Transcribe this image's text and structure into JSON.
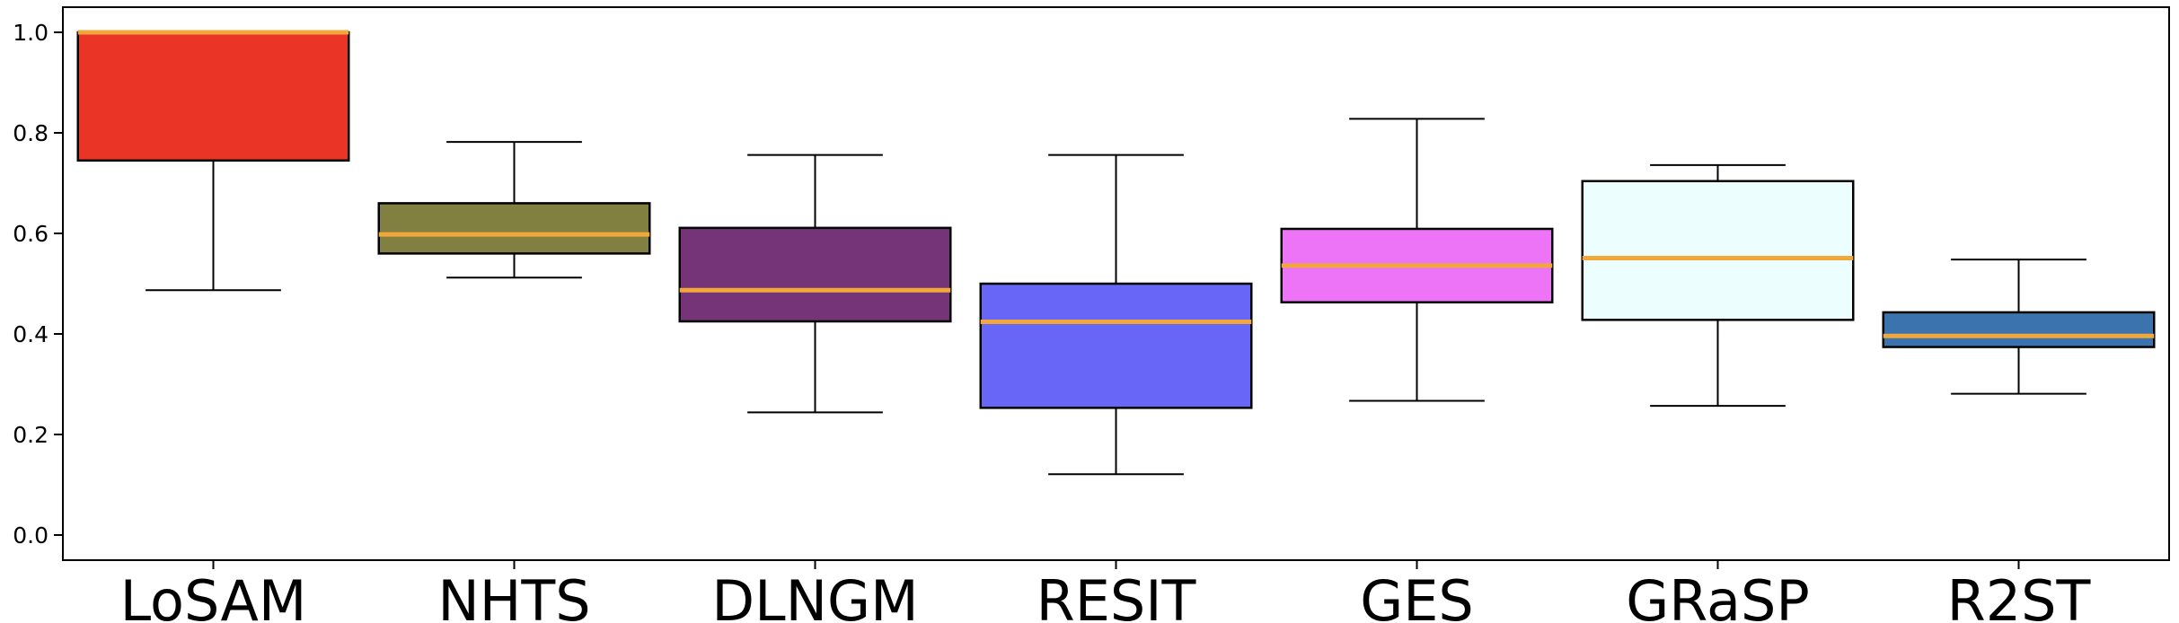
{
  "chart_data": {
    "type": "box",
    "categories": [
      "LoSAM",
      "NHTS",
      "DLNGM",
      "RESIT",
      "GES",
      "GRaSP",
      "R2ST"
    ],
    "boxes": [
      {
        "label": "LoSAM",
        "whisker_low": 0.487,
        "q1": 0.745,
        "median": 1.0,
        "q3": 1.0,
        "whisker_high": 1.0,
        "color": "#ea3425"
      },
      {
        "label": "NHTS",
        "whisker_low": 0.512,
        "q1": 0.56,
        "median": 0.598,
        "q3": 0.66,
        "whisker_high": 0.782,
        "color": "#818041"
      },
      {
        "label": "DLNGM",
        "whisker_low": 0.244,
        "q1": 0.425,
        "median": 0.487,
        "q3": 0.611,
        "whisker_high": 0.756,
        "color": "#763478"
      },
      {
        "label": "RESIT",
        "whisker_low": 0.121,
        "q1": 0.253,
        "median": 0.424,
        "q3": 0.5,
        "whisker_high": 0.756,
        "color": "#6866f7"
      },
      {
        "label": "GES",
        "whisker_low": 0.267,
        "q1": 0.463,
        "median": 0.536,
        "q3": 0.609,
        "whisker_high": 0.828,
        "color": "#ee74f7"
      },
      {
        "label": "GRaSP",
        "whisker_low": 0.257,
        "q1": 0.428,
        "median": 0.551,
        "q3": 0.704,
        "whisker_high": 0.736,
        "color": "#edfefe"
      },
      {
        "label": "R2ST",
        "whisker_low": 0.281,
        "q1": 0.374,
        "median": 0.396,
        "q3": 0.443,
        "whisker_high": 0.548,
        "color": "#3a73ad"
      }
    ],
    "median_color": "#f2a73b",
    "y_ticks": [
      "0.0",
      "0.2",
      "0.4",
      "0.6",
      "0.8",
      "1.0"
    ],
    "ylim": [
      -0.05,
      1.05
    ],
    "grid": false,
    "legend": "none",
    "title": "",
    "xlabel": "",
    "ylabel": ""
  }
}
